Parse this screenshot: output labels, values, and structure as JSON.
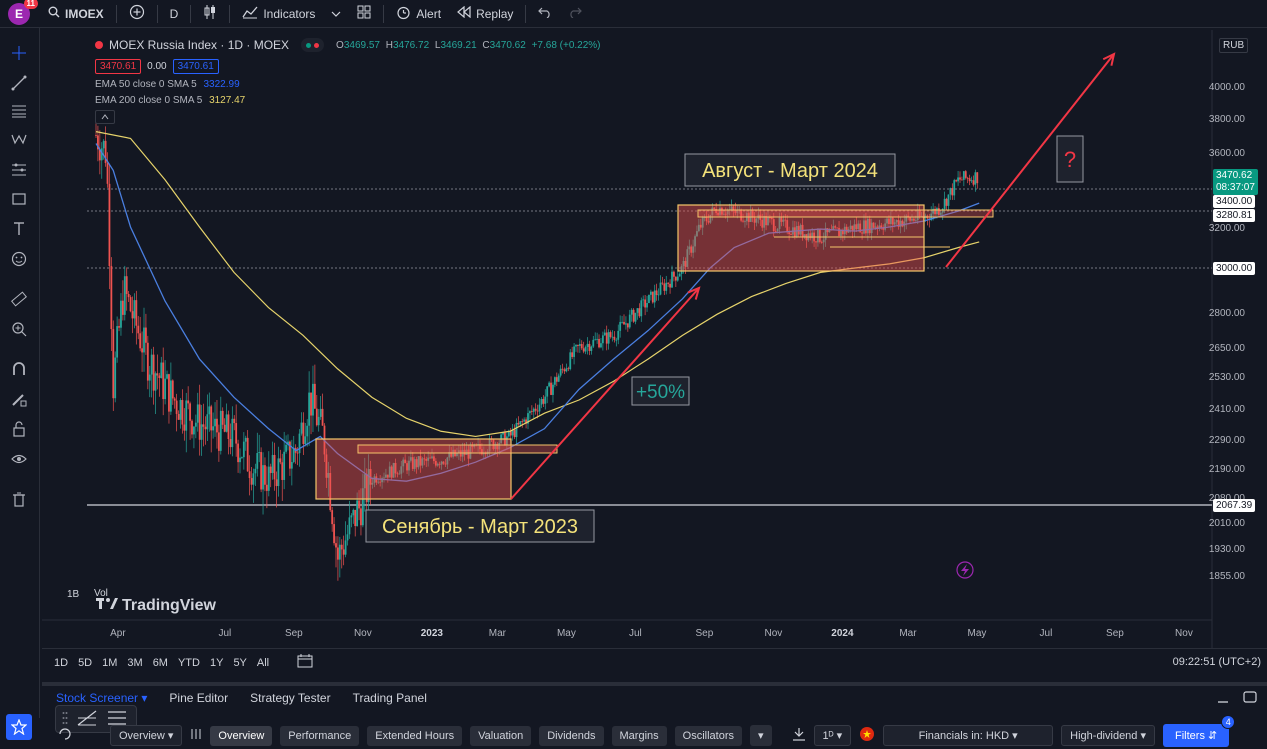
{
  "topbar": {
    "avatar_letter": "E",
    "avatar_badge": "11",
    "symbol": "IMOEX",
    "interval": "D",
    "indicators_label": "Indicators",
    "alert_label": "Alert",
    "replay_label": "Replay"
  },
  "legend": {
    "title": "MOEX Russia Index · 1D · MOEX",
    "ohlc": {
      "o": "3469.57",
      "h": "3476.72",
      "l": "3469.21",
      "c": "3470.62",
      "chg": "+7.68 (+0.22%)"
    },
    "bid": "3470.61",
    "spread": "0.00",
    "ask": "3470.61",
    "ema50": {
      "label": "EMA 50 close 0 SMA 5",
      "value": "3322.99"
    },
    "ema200": {
      "label": "EMA 200 close 0 SMA 5",
      "value": "3127.47"
    }
  },
  "price_axis": {
    "currency": "RUB",
    "ticks": [
      "4000.00",
      "3800.00",
      "3600.00",
      "3200.00",
      "2800.00",
      "2650.00",
      "2530.00",
      "2410.00",
      "2290.00",
      "2190.00",
      "2080.00",
      "2010.00",
      "1930.00",
      "1855.00"
    ],
    "last_price": "3470.62",
    "countdown": "08:37:07",
    "level_3400": "3400.00",
    "level_3280": "3280.81",
    "level_3000": "3000.00",
    "level_2067": "2067.39"
  },
  "time_axis": {
    "ticks": [
      "Apr",
      "Jul",
      "Sep",
      "Nov",
      "2023",
      "Mar",
      "May",
      "Jul",
      "Sep",
      "Nov",
      "2024",
      "Mar",
      "May",
      "Jul",
      "Sep",
      "Nov"
    ]
  },
  "annotations": {
    "box1_label": "Сенябрь - Март 2023",
    "box2_label": "Август - Март 2024",
    "gain_label": "+50%",
    "question_label": "?"
  },
  "watermark": "TradingView",
  "pane_labels": {
    "b": "1B",
    "vol": "Vol"
  },
  "timeframes": [
    "1D",
    "5D",
    "1M",
    "3M",
    "6M",
    "YTD",
    "1Y",
    "5Y",
    "All"
  ],
  "clock": "09:22:51 (UTC+2)",
  "panel_tabs": [
    "Stock Screener",
    "Pine Editor",
    "Strategy Tester",
    "Trading Panel"
  ],
  "screener": {
    "view": "Overview",
    "chips": [
      "Overview",
      "Performance",
      "Extended Hours",
      "Valuation",
      "Dividends",
      "Margins",
      "Oscillators"
    ],
    "interval": "1ᴰ",
    "financials": "Financials in: HKD",
    "preset": "High-dividend",
    "filters_label": "Filters",
    "filters_count": "4"
  },
  "colors": {
    "bg": "#131722",
    "up": "#26a69a",
    "down": "#ef5350",
    "ema50": "#2962ff",
    "ema200": "#e6d36b",
    "annotation_box": "#f4c56a",
    "arrow": "#f23645"
  }
}
